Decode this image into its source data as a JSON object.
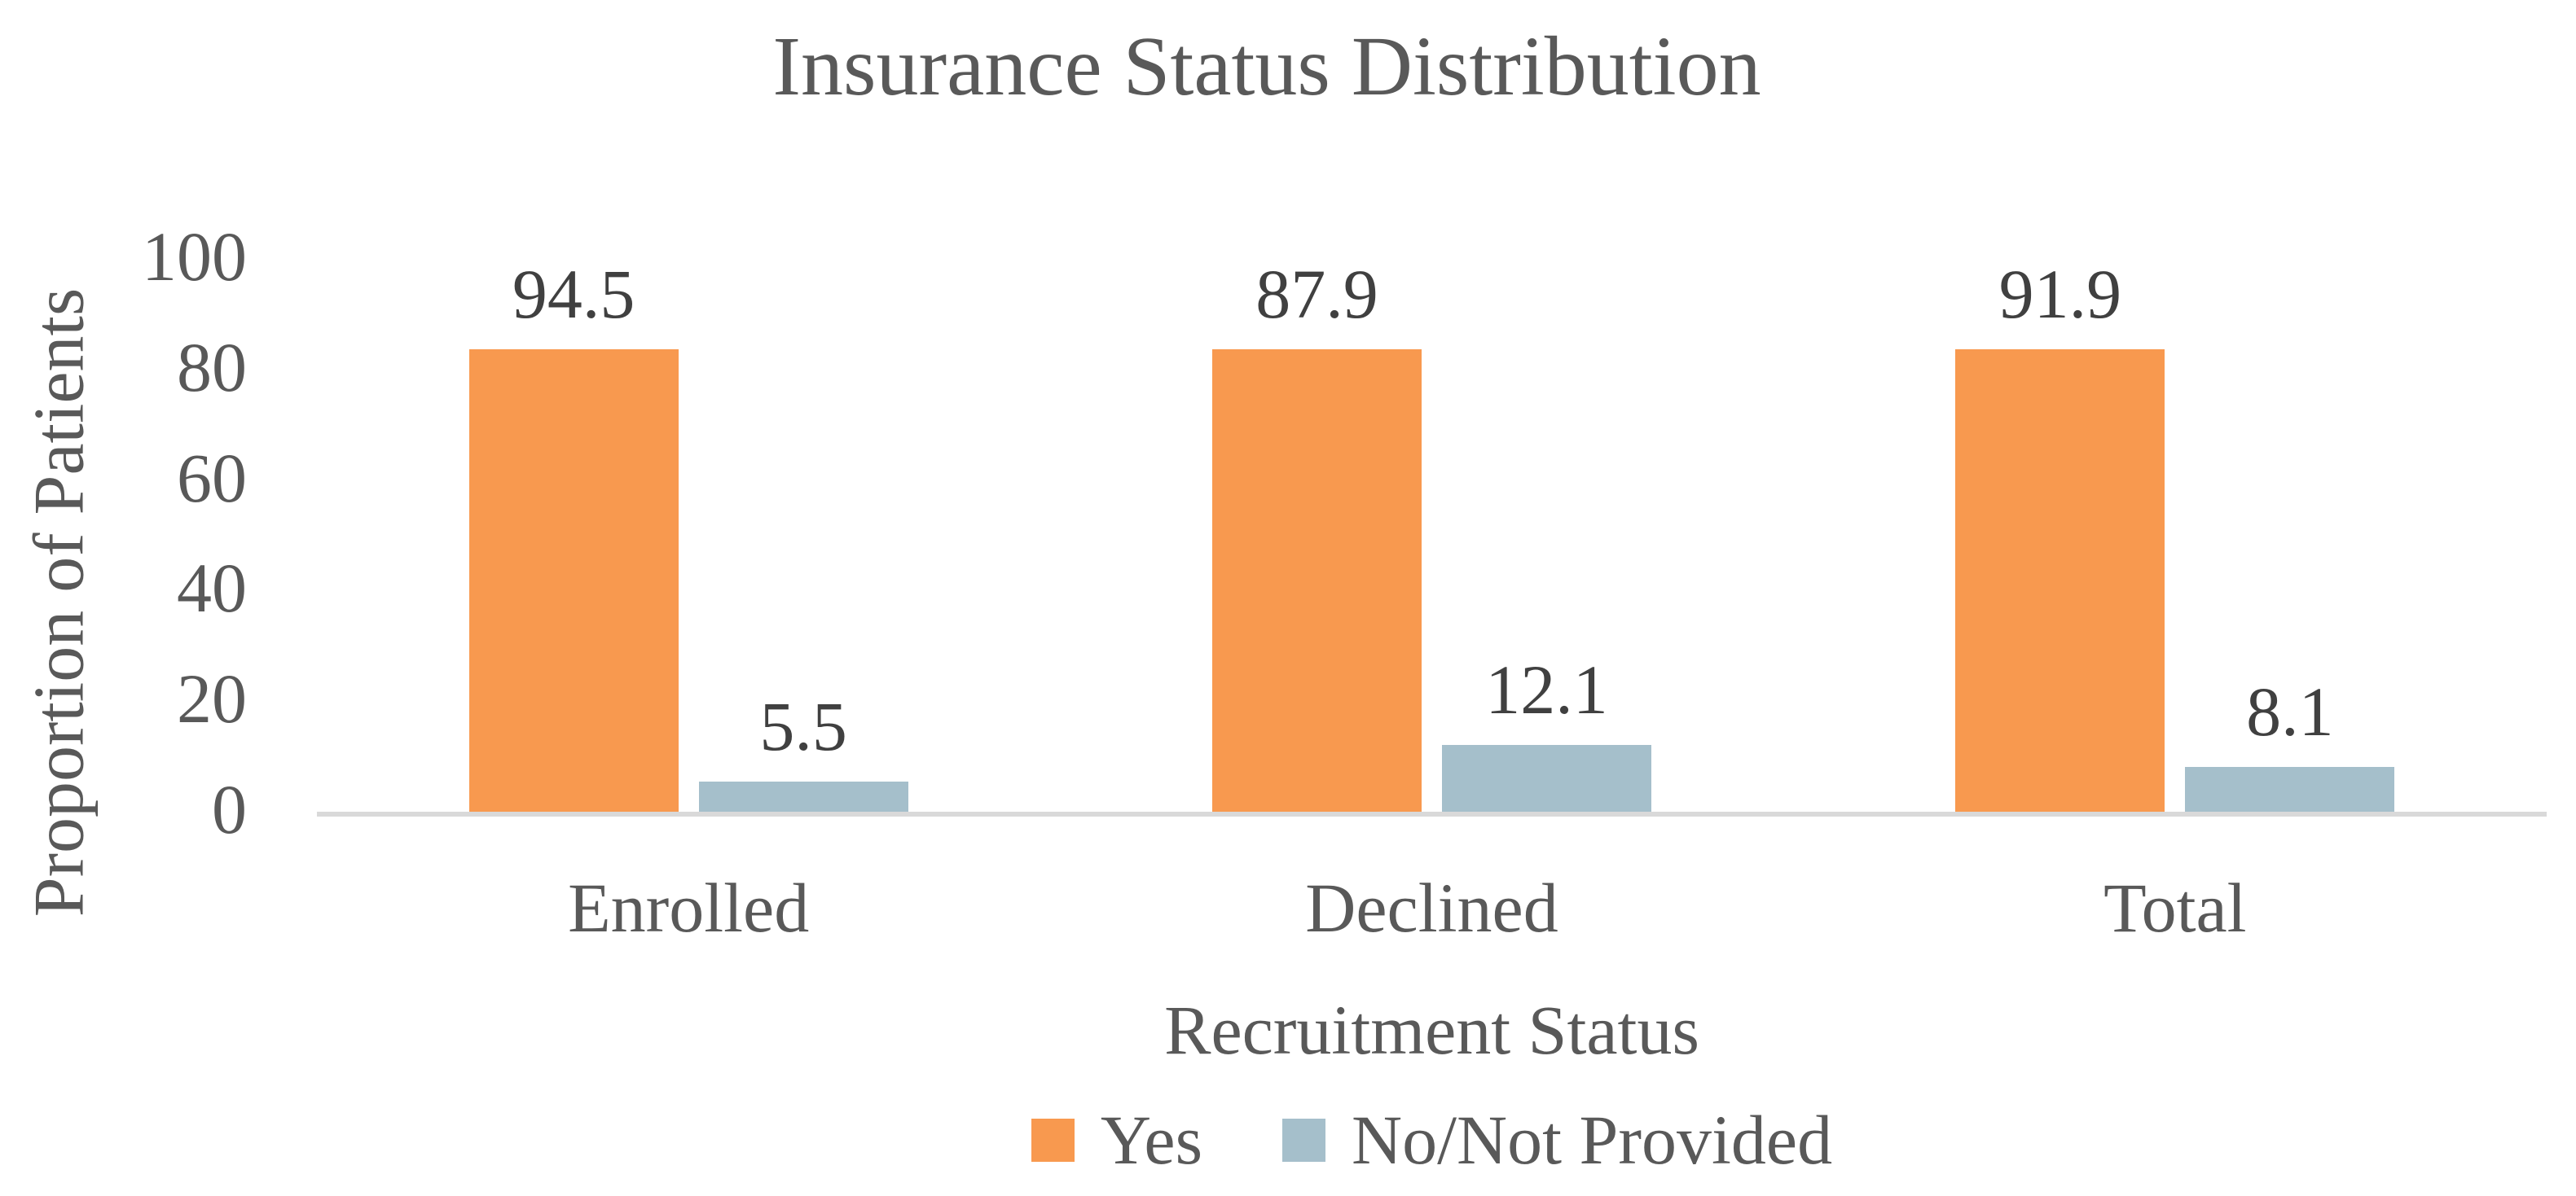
{
  "chart_data": {
    "type": "bar",
    "title": "Insurance Status Distribution",
    "xlabel": "Recruitment Status",
    "ylabel": "Proportion of Patients",
    "categories": [
      "Enrolled",
      "Declined",
      "Total"
    ],
    "series": [
      {
        "name": "Yes",
        "color": "#F8994F",
        "values": [
          94.5,
          87.9,
          91.9
        ]
      },
      {
        "name": "No/Not Provided",
        "color": "#A5BFCB",
        "values": [
          5.5,
          12.1,
          8.1
        ]
      }
    ],
    "yticks": [
      0,
      20,
      40,
      60,
      80,
      100
    ],
    "ylim": [
      0,
      100
    ],
    "grid": false,
    "legend_position": "bottom",
    "data_labels": true
  },
  "colors": {
    "axis_line": "#D9D9D9",
    "text": "#595959",
    "data_label": "#404040"
  }
}
